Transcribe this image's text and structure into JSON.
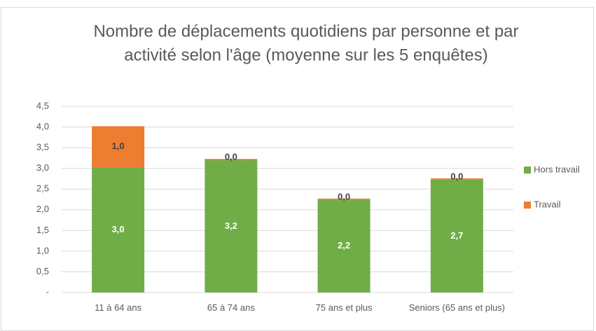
{
  "chart_data": {
    "type": "stacked_bar",
    "title": [
      "Nombre de déplacements quotidiens par personne et par",
      "activité selon l'âge (moyenne sur les 5 enquêtes)"
    ],
    "categories": [
      "11 à 64 ans",
      "65 à 74 ans",
      "75 ans et plus",
      "Seniors (65 ans et plus)"
    ],
    "series": [
      {
        "name": "Hors travail",
        "color": "#70ad47",
        "values": [
          3.03,
          3.2,
          2.24,
          2.73
        ],
        "value_labels": [
          "3,0",
          "3,2",
          "2,2",
          "2,7"
        ]
      },
      {
        "name": "Travail",
        "color": "#ed7d31",
        "values": [
          0.99,
          0.03,
          0.03,
          0.03
        ],
        "value_labels": [
          "1,0",
          "0,0",
          "0,0",
          "0,0"
        ]
      }
    ],
    "ylim": [
      0,
      4.5
    ],
    "yticks": [
      {
        "value": 0,
        "label": "-"
      },
      {
        "value": 0.5,
        "label": "0,5"
      },
      {
        "value": 1,
        "label": "1,0"
      },
      {
        "value": 1.5,
        "label": "1,5"
      },
      {
        "value": 2,
        "label": "2,0"
      },
      {
        "value": 2.5,
        "label": "2,5"
      },
      {
        "value": 3,
        "label": "3,0"
      },
      {
        "value": 3.5,
        "label": "3,5"
      },
      {
        "value": 4,
        "label": "4,0"
      },
      {
        "value": 4.5,
        "label": "4,5"
      }
    ],
    "grid": true,
    "legend": "right"
  }
}
